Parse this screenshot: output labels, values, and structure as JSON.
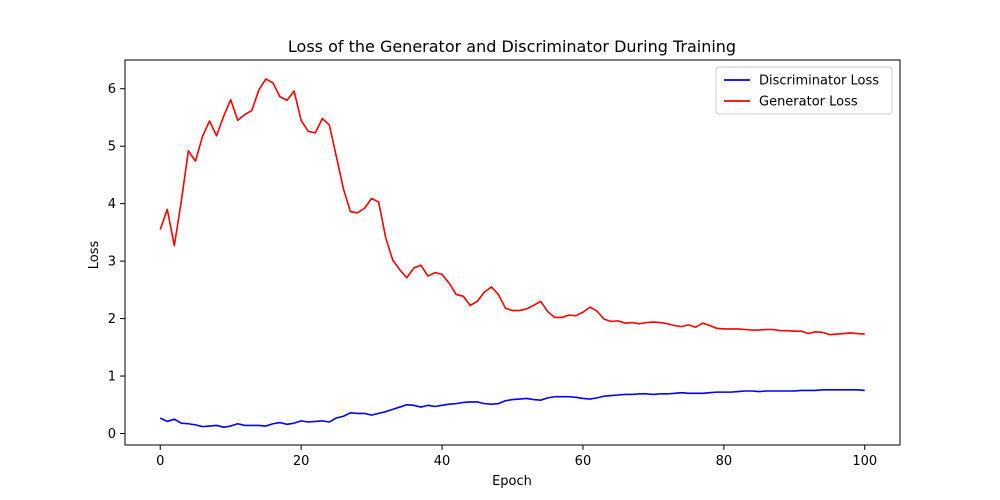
{
  "chart_data": {
    "type": "line",
    "title": "Loss of the Generator and Discriminator During Training",
    "xlabel": "Epoch",
    "ylabel": "Loss",
    "xlim": [
      -5,
      105
    ],
    "ylim": [
      -0.2,
      6.5
    ],
    "xticks": [
      0,
      20,
      40,
      60,
      80,
      100
    ],
    "yticks": [
      0,
      1,
      2,
      3,
      4,
      5,
      6
    ],
    "grid": false,
    "legend_position": "top-right",
    "x": [
      0,
      1,
      2,
      3,
      4,
      5,
      6,
      7,
      8,
      9,
      10,
      11,
      12,
      13,
      14,
      15,
      16,
      17,
      18,
      19,
      20,
      21,
      22,
      23,
      24,
      25,
      26,
      27,
      28,
      29,
      30,
      31,
      32,
      33,
      34,
      35,
      36,
      37,
      38,
      39,
      40,
      41,
      42,
      43,
      44,
      45,
      46,
      47,
      48,
      49,
      50,
      51,
      52,
      53,
      54,
      55,
      56,
      57,
      58,
      59,
      60,
      61,
      62,
      63,
      64,
      65,
      66,
      67,
      68,
      69,
      70,
      71,
      72,
      73,
      74,
      75,
      76,
      77,
      78,
      79,
      80,
      81,
      82,
      83,
      84,
      85,
      86,
      87,
      88,
      89,
      90,
      91,
      92,
      93,
      94,
      95,
      96,
      97,
      98,
      99,
      100
    ],
    "series": [
      {
        "name": "Discriminator Loss",
        "color": "#0000ff",
        "values": [
          0.27,
          0.21,
          0.25,
          0.18,
          0.17,
          0.15,
          0.12,
          0.13,
          0.14,
          0.11,
          0.13,
          0.17,
          0.14,
          0.14,
          0.14,
          0.13,
          0.17,
          0.19,
          0.16,
          0.18,
          0.22,
          0.2,
          0.21,
          0.22,
          0.2,
          0.27,
          0.3,
          0.36,
          0.35,
          0.35,
          0.32,
          0.35,
          0.38,
          0.42,
          0.46,
          0.5,
          0.49,
          0.46,
          0.49,
          0.47,
          0.49,
          0.51,
          0.52,
          0.54,
          0.55,
          0.55,
          0.52,
          0.51,
          0.52,
          0.57,
          0.59,
          0.6,
          0.61,
          0.59,
          0.58,
          0.62,
          0.64,
          0.64,
          0.64,
          0.63,
          0.61,
          0.6,
          0.62,
          0.65,
          0.66,
          0.67,
          0.68,
          0.68,
          0.69,
          0.69,
          0.68,
          0.69,
          0.69,
          0.7,
          0.71,
          0.7,
          0.7,
          0.7,
          0.71,
          0.72,
          0.72,
          0.72,
          0.73,
          0.74,
          0.74,
          0.73,
          0.74,
          0.74,
          0.74,
          0.74,
          0.74,
          0.75,
          0.75,
          0.75,
          0.76,
          0.76,
          0.76,
          0.76,
          0.76,
          0.76,
          0.75
        ]
      },
      {
        "name": "Generator Loss",
        "color": "#ff0000",
        "values": [
          3.55,
          3.9,
          3.27,
          4.05,
          4.92,
          4.74,
          5.17,
          5.44,
          5.18,
          5.52,
          5.81,
          5.45,
          5.55,
          5.62,
          5.98,
          6.17,
          6.1,
          5.86,
          5.8,
          5.96,
          5.45,
          5.26,
          5.23,
          5.48,
          5.37,
          4.82,
          4.26,
          3.86,
          3.84,
          3.92,
          4.09,
          4.03,
          3.41,
          3.02,
          2.85,
          2.71,
          2.88,
          2.93,
          2.74,
          2.8,
          2.77,
          2.62,
          2.42,
          2.39,
          2.23,
          2.3,
          2.46,
          2.55,
          2.42,
          2.18,
          2.14,
          2.14,
          2.17,
          2.23,
          2.3,
          2.12,
          2.02,
          2.02,
          2.06,
          2.05,
          2.11,
          2.2,
          2.13,
          1.99,
          1.95,
          1.96,
          1.92,
          1.93,
          1.91,
          1.93,
          1.94,
          1.93,
          1.91,
          1.88,
          1.86,
          1.89,
          1.85,
          1.92,
          1.88,
          1.83,
          1.82,
          1.82,
          1.82,
          1.81,
          1.8,
          1.8,
          1.81,
          1.81,
          1.79,
          1.79,
          1.78,
          1.78,
          1.74,
          1.77,
          1.76,
          1.72,
          1.73,
          1.74,
          1.75,
          1.74,
          1.73
        ]
      }
    ]
  }
}
